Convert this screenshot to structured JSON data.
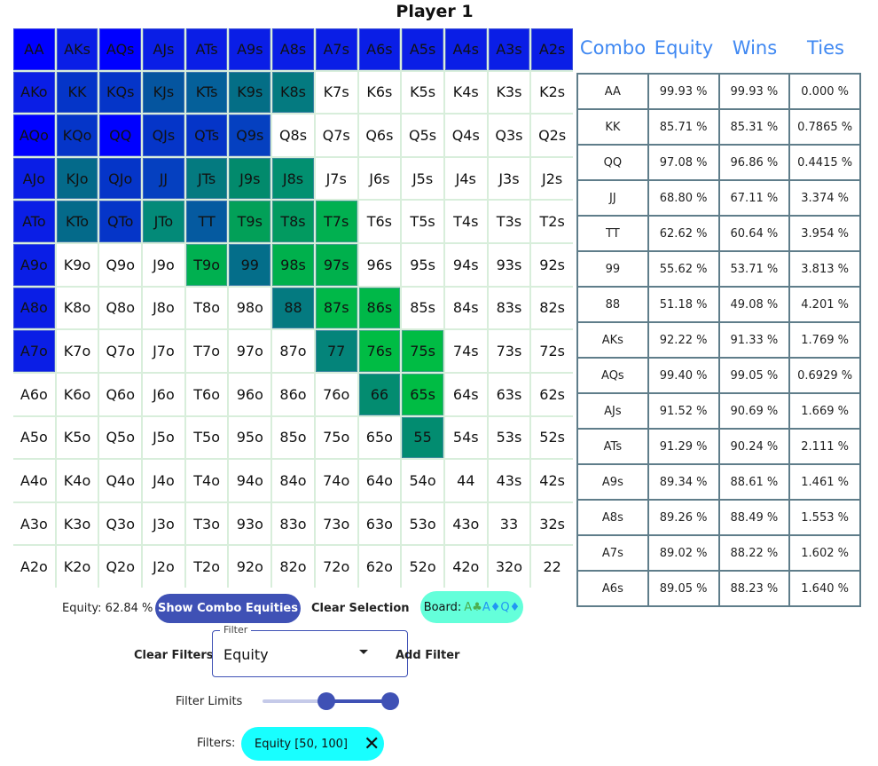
{
  "title": "Player 1",
  "grid": {
    "rows": [
      [
        "AA",
        "AKs",
        "AQs",
        "AJs",
        "ATs",
        "A9s",
        "A8s",
        "A7s",
        "A6s",
        "A5s",
        "A4s",
        "A3s",
        "A2s"
      ],
      [
        "AKo",
        "KK",
        "KQs",
        "KJs",
        "KTs",
        "K9s",
        "K8s",
        "K7s",
        "K6s",
        "K5s",
        "K4s",
        "K3s",
        "K2s"
      ],
      [
        "AQo",
        "KQo",
        "QQ",
        "QJs",
        "QTs",
        "Q9s",
        "Q8s",
        "Q7s",
        "Q6s",
        "Q5s",
        "Q4s",
        "Q3s",
        "Q2s"
      ],
      [
        "AJo",
        "KJo",
        "QJo",
        "JJ",
        "JTs",
        "J9s",
        "J8s",
        "J7s",
        "J6s",
        "J5s",
        "J4s",
        "J3s",
        "J2s"
      ],
      [
        "ATo",
        "KTo",
        "QTo",
        "JTo",
        "TT",
        "T9s",
        "T8s",
        "T7s",
        "T6s",
        "T5s",
        "T4s",
        "T3s",
        "T2s"
      ],
      [
        "A9o",
        "K9o",
        "Q9o",
        "J9o",
        "T9o",
        "99",
        "98s",
        "97s",
        "96s",
        "95s",
        "94s",
        "93s",
        "92s"
      ],
      [
        "A8o",
        "K8o",
        "Q8o",
        "J8o",
        "T8o",
        "98o",
        "88",
        "87s",
        "86s",
        "85s",
        "84s",
        "83s",
        "82s"
      ],
      [
        "A7o",
        "K7o",
        "Q7o",
        "J7o",
        "T7o",
        "97o",
        "87o",
        "77",
        "76s",
        "75s",
        "74s",
        "73s",
        "72s"
      ],
      [
        "A6o",
        "K6o",
        "Q6o",
        "J6o",
        "T6o",
        "96o",
        "86o",
        "76o",
        "66",
        "65s",
        "64s",
        "63s",
        "62s"
      ],
      [
        "A5o",
        "K5o",
        "Q5o",
        "J5o",
        "T5o",
        "95o",
        "85o",
        "75o",
        "65o",
        "55",
        "54s",
        "53s",
        "52s"
      ],
      [
        "A4o",
        "K4o",
        "Q4o",
        "J4o",
        "T4o",
        "94o",
        "84o",
        "74o",
        "64o",
        "54o",
        "44",
        "43s",
        "42s"
      ],
      [
        "A3o",
        "K3o",
        "Q3o",
        "J3o",
        "T3o",
        "93o",
        "83o",
        "73o",
        "63o",
        "53o",
        "43o",
        "33",
        "32s"
      ],
      [
        "A2o",
        "K2o",
        "Q2o",
        "J2o",
        "T2o",
        "92o",
        "82o",
        "72o",
        "62o",
        "52o",
        "42o",
        "32o",
        "22"
      ]
    ],
    "cell_colors": {
      "AA": "#0000ff",
      "AKs": "#0a1ee6",
      "AQs": "#0000ff",
      "AJs": "#0a1ee6",
      "ATs": "#0a1ee6",
      "A9s": "#0a1ee6",
      "A8s": "#0a1ee6",
      "A7s": "#0a1ee6",
      "A6s": "#0a1ee6",
      "A5s": "#0a1ee6",
      "A4s": "#0a1ee6",
      "A3s": "#0a1ee6",
      "A2s": "#0a1ee6",
      "AKo": "#0a1ee6",
      "KK": "#0535c8",
      "KQs": "#0535c8",
      "KJs": "#05559f",
      "KTs": "#05609a",
      "K9s": "#046e86",
      "K8s": "#047a80",
      "AQo": "#0000ff",
      "KQo": "#0535c8",
      "QQ": "#0000ff",
      "QJs": "#0535c8",
      "QTs": "#0535c8",
      "Q9s": "#0540c0",
      "AJo": "#0a1ee6",
      "KJo": "#046a8a",
      "QJo": "#0535c8",
      "JJ": "#0540c0",
      "JTs": "#047a80",
      "J9s": "#028a6c",
      "J8s": "#029070",
      "ATo": "#0a1ee6",
      "KTo": "#046a8a",
      "QTo": "#0535c8",
      "JTo": "#038a78",
      "TT": "#055aa0",
      "T9s": "#02a058",
      "T8s": "#029a60",
      "T7s": "#01b050",
      "A9o": "#0a1ee6",
      "T9o": "#00b050",
      "99": "#046e8a",
      "98s": "#00b04c",
      "97s": "#00b04c",
      "A8o": "#0a1ee6",
      "88": "#047a80",
      "87s": "#00b848",
      "86s": "#00b848",
      "A7o": "#0a1ee6",
      "77": "#04847a",
      "76s": "#00bc44",
      "75s": "#00bc44",
      "66": "#038c70",
      "65s": "#00bc44",
      "55": "#028c70"
    }
  },
  "table": {
    "headers": [
      "Combo",
      "Equity",
      "Wins",
      "Ties"
    ],
    "rows": [
      [
        "AA",
        "99.93 %",
        "99.93 %",
        "0.000 %"
      ],
      [
        "KK",
        "85.71 %",
        "85.31 %",
        "0.7865 %"
      ],
      [
        "QQ",
        "97.08 %",
        "96.86 %",
        "0.4415 %"
      ],
      [
        "JJ",
        "68.80 %",
        "67.11 %",
        "3.374 %"
      ],
      [
        "TT",
        "62.62 %",
        "60.64 %",
        "3.954 %"
      ],
      [
        "99",
        "55.62 %",
        "53.71 %",
        "3.813 %"
      ],
      [
        "88",
        "51.18 %",
        "49.08 %",
        "4.201 %"
      ],
      [
        "AKs",
        "92.22 %",
        "91.33 %",
        "1.769 %"
      ],
      [
        "AQs",
        "99.40 %",
        "99.05 %",
        "0.6929 %"
      ],
      [
        "AJs",
        "91.52 %",
        "90.69 %",
        "1.669 %"
      ],
      [
        "ATs",
        "91.29 %",
        "90.24 %",
        "2.111 %"
      ],
      [
        "A9s",
        "89.34 %",
        "88.61 %",
        "1.461 %"
      ],
      [
        "A8s",
        "89.26 %",
        "88.49 %",
        "1.553 %"
      ],
      [
        "A7s",
        "89.02 %",
        "88.22 %",
        "1.602 %"
      ],
      [
        "A6s",
        "89.05 %",
        "88.23 %",
        "1.640 %"
      ]
    ]
  },
  "controls": {
    "equity_label": "Equity: 62.84 %",
    "show_combo_label": "Show Combo Equities",
    "clear_selection_label": "Clear Selection",
    "board_label": "Board:",
    "board_cards": [
      {
        "text": "A♣",
        "color": "#4caf50"
      },
      {
        "text": "A♦",
        "color": "#2196f3"
      },
      {
        "text": "Q♦",
        "color": "#2196f3"
      }
    ],
    "clear_filters_label": "Clear Filters",
    "filter_legend": "Filter",
    "filter_value": "Equity",
    "add_filter_label": "Add Filter",
    "filter_limits_label": "Filter Limits",
    "slider": {
      "min": 0,
      "max": 100,
      "low": 50,
      "high": 100
    },
    "filters_label": "Filters:",
    "filter_chip": "Equity [50, 100]",
    "accent": "#3f51b5"
  }
}
